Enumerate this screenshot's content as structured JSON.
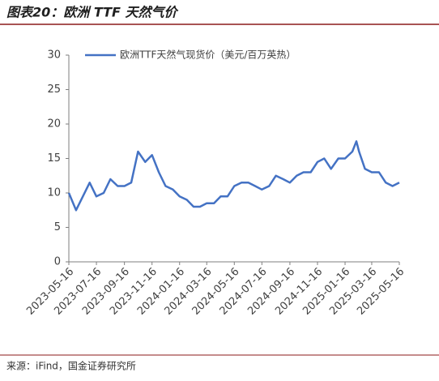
{
  "title": "图表20：欧洲 TTF 天然气价",
  "source": "来源：iFind，国金证券研究所",
  "chart_data": {
    "type": "line",
    "x": [
      "2023-05-16",
      "2023-06-01",
      "2023-06-16",
      "2023-07-01",
      "2023-07-16",
      "2023-08-01",
      "2023-08-16",
      "2023-09-01",
      "2023-09-16",
      "2023-10-01",
      "2023-10-16",
      "2023-11-01",
      "2023-11-16",
      "2023-12-01",
      "2023-12-16",
      "2024-01-01",
      "2024-01-16",
      "2024-02-01",
      "2024-02-16",
      "2024-03-01",
      "2024-03-16",
      "2024-04-01",
      "2024-04-16",
      "2024-05-01",
      "2024-05-16",
      "2024-06-01",
      "2024-06-16",
      "2024-07-01",
      "2024-07-16",
      "2024-08-01",
      "2024-08-16",
      "2024-09-01",
      "2024-09-16",
      "2024-10-01",
      "2024-10-16",
      "2024-11-01",
      "2024-11-16",
      "2024-12-01",
      "2024-12-16",
      "2025-01-01",
      "2025-01-16",
      "2025-02-01",
      "2025-02-10",
      "2025-02-16",
      "2025-03-01",
      "2025-03-16",
      "2025-04-01",
      "2025-04-16",
      "2025-05-01",
      "2025-05-16"
    ],
    "series": [
      {
        "name": "欧洲TTF天然气现货价（美元/百万英热）",
        "color": "#4472c4",
        "values": [
          10,
          7.5,
          9.5,
          11.5,
          9.5,
          10,
          12,
          11,
          11,
          11.5,
          16,
          14.5,
          15.5,
          13,
          11,
          10.5,
          9.5,
          9,
          8,
          8,
          8.5,
          8.5,
          9.5,
          9.5,
          11,
          11.5,
          11.5,
          11,
          10.5,
          11,
          12.5,
          12,
          11.5,
          12.5,
          13,
          13,
          14.5,
          15,
          13.5,
          15,
          15,
          16,
          17.5,
          16,
          13.5,
          13,
          13,
          11.5,
          11,
          11.5
        ]
      }
    ],
    "xlim": [
      "2023-05-16",
      "2025-05-16"
    ],
    "xticks": [
      "2023-05-16",
      "2023-07-16",
      "2023-09-16",
      "2023-11-16",
      "2024-01-16",
      "2024-03-16",
      "2024-05-16",
      "2024-07-16",
      "2024-09-16",
      "2024-11-16",
      "2025-01-16",
      "2025-03-16",
      "2025-05-16"
    ],
    "ylim": [
      0,
      30
    ],
    "yticks": [
      0,
      5,
      10,
      15,
      20,
      25,
      30
    ],
    "legend": "top-left"
  }
}
